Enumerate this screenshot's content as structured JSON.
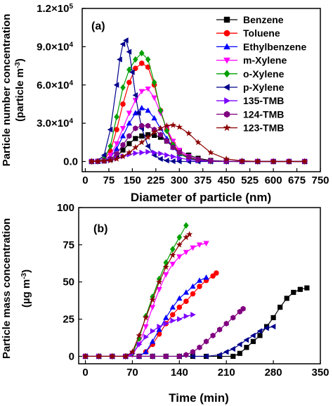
{
  "chart_data": [
    {
      "type": "line",
      "panel_label": "(a)",
      "xlabel": "Diameter of particle (nm)",
      "ylabel_line1": "Particle number concentration",
      "ylabel_line2_text": "(particle m",
      "ylabel_line2_sup": "-3",
      "ylabel_line2_close": ")",
      "xlim": [
        -10,
        750
      ],
      "ylim": [
        -8000,
        120000
      ],
      "xticks": [
        "0",
        "75",
        "150",
        "225",
        "300",
        "375",
        "450",
        "525",
        "600",
        "675",
        "750"
      ],
      "xtick_values": [
        0,
        75,
        150,
        225,
        300,
        375,
        450,
        525,
        600,
        675,
        750
      ],
      "yticks": [
        "0.0",
        "3.0×10",
        "6.0×10",
        "9.0×10",
        "1.2×10"
      ],
      "ytick_sup": [
        "",
        "4",
        "4",
        "4",
        "5"
      ],
      "ytick_values": [
        0,
        30000,
        60000,
        90000,
        120000
      ],
      "legend_position": "top-right",
      "series": [
        {
          "name": "Benzene",
          "color": "#000000",
          "marker": "square",
          "x": [
            20,
            40,
            60,
            80,
            100,
            120,
            140,
            160,
            180,
            200,
            220,
            240,
            260,
            280,
            300,
            330,
            360,
            400,
            450,
            500,
            550,
            600,
            650,
            700
          ],
          "y": [
            0,
            100,
            500,
            1500,
            4000,
            9000,
            14000,
            18000,
            20000,
            21000,
            20500,
            19000,
            16000,
            12000,
            8000,
            5000,
            2500,
            800,
            200,
            50,
            0,
            0,
            0,
            0
          ]
        },
        {
          "name": "Toluene",
          "color": "#ff0000",
          "marker": "circle",
          "x": [
            20,
            40,
            60,
            80,
            100,
            120,
            140,
            160,
            180,
            200,
            220,
            240,
            260,
            280,
            300,
            330,
            360,
            400,
            450,
            500,
            550,
            600,
            650,
            700
          ],
          "y": [
            0,
            200,
            1500,
            8000,
            25000,
            45000,
            62000,
            73000,
            77000,
            74000,
            60000,
            40000,
            25000,
            14000,
            7000,
            3000,
            1000,
            300,
            50,
            0,
            0,
            0,
            0,
            0
          ]
        },
        {
          "name": "Ethylbenzene",
          "color": "#0000ff",
          "marker": "triangle-up",
          "x": [
            20,
            40,
            60,
            80,
            100,
            120,
            140,
            160,
            180,
            200,
            220,
            240,
            260,
            280,
            300,
            330,
            360,
            400,
            450,
            500,
            550,
            600,
            650,
            700
          ],
          "y": [
            0,
            100,
            600,
            3000,
            10000,
            20000,
            30000,
            38000,
            42000,
            40000,
            34000,
            26000,
            18000,
            11000,
            6000,
            2500,
            900,
            200,
            50,
            0,
            0,
            0,
            0,
            0
          ]
        },
        {
          "name": "m-Xylene",
          "color": "#ff00ff",
          "marker": "triangle-down",
          "x": [
            20,
            40,
            60,
            80,
            100,
            120,
            140,
            160,
            180,
            200,
            220,
            240,
            260,
            280,
            300,
            330,
            360,
            400,
            450,
            500,
            550,
            600,
            650,
            700
          ],
          "y": [
            0,
            200,
            1000,
            5000,
            14000,
            26000,
            38000,
            48000,
            55000,
            57000,
            50000,
            38000,
            26000,
            16000,
            9000,
            4000,
            1500,
            400,
            100,
            0,
            0,
            0,
            0,
            0
          ]
        },
        {
          "name": "o-Xylene",
          "color": "#00a000",
          "marker": "diamond",
          "x": [
            20,
            40,
            60,
            80,
            100,
            120,
            140,
            160,
            180,
            200,
            220,
            240,
            260,
            280,
            300,
            330,
            360,
            400,
            450,
            500,
            550,
            600,
            650,
            700
          ],
          "y": [
            0,
            200,
            2000,
            12000,
            35000,
            58000,
            72000,
            80000,
            85000,
            80000,
            62000,
            40000,
            24000,
            13000,
            6000,
            2500,
            800,
            200,
            50,
            0,
            0,
            0,
            0,
            0
          ]
        },
        {
          "name": "p-Xylene",
          "color": "#00008b",
          "marker": "triangle-left",
          "x": [
            20,
            40,
            60,
            80,
            100,
            110,
            120,
            130,
            140,
            150,
            160,
            170,
            180,
            200,
            220,
            240,
            260,
            280,
            300,
            330,
            360,
            400,
            450,
            500,
            550,
            600,
            650,
            700
          ],
          "y": [
            0,
            500,
            5000,
            25000,
            60000,
            80000,
            92000,
            95000,
            86000,
            70000,
            52000,
            38000,
            26000,
            12000,
            5000,
            2000,
            700,
            200,
            50,
            0,
            0,
            0,
            0,
            0,
            0,
            0,
            0,
            0
          ]
        },
        {
          "name": "135-TMB",
          "color": "#7b00ff",
          "marker": "triangle-right",
          "x": [
            20,
            40,
            60,
            80,
            100,
            120,
            140,
            160,
            180,
            200,
            220,
            240,
            260,
            280,
            300,
            330,
            360,
            400,
            450,
            500,
            550,
            600,
            650,
            700
          ],
          "y": [
            0,
            100,
            400,
            1000,
            2500,
            4000,
            5500,
            6500,
            7000,
            7500,
            7000,
            6200,
            5000,
            3800,
            2700,
            1500,
            700,
            250,
            50,
            0,
            0,
            0,
            0,
            0
          ]
        },
        {
          "name": "124-TMB",
          "color": "#800080",
          "marker": "hexagon",
          "x": [
            20,
            40,
            60,
            80,
            100,
            120,
            140,
            160,
            180,
            200,
            220,
            240,
            260,
            280,
            300,
            330,
            360,
            400,
            450,
            500,
            550,
            600,
            650,
            700
          ],
          "y": [
            0,
            100,
            500,
            2000,
            6000,
            13000,
            20000,
            26000,
            28000,
            28000,
            25000,
            21000,
            16000,
            11000,
            7000,
            3500,
            1500,
            400,
            100,
            0,
            0,
            0,
            0,
            0
          ]
        },
        {
          "name": "123-TMB",
          "color": "#8b0000",
          "marker": "star",
          "x": [
            20,
            40,
            60,
            80,
            100,
            120,
            140,
            160,
            180,
            200,
            220,
            240,
            260,
            280,
            300,
            330,
            360,
            400,
            450,
            500,
            550,
            600,
            650,
            700
          ],
          "y": [
            0,
            100,
            300,
            800,
            2000,
            4000,
            7000,
            11000,
            15000,
            19000,
            23000,
            26000,
            28000,
            28500,
            27000,
            22000,
            15000,
            7000,
            2000,
            500,
            100,
            0,
            0,
            0
          ]
        }
      ]
    },
    {
      "type": "line",
      "panel_label": "(b)",
      "xlabel": "Time (min)",
      "ylabel_line1": "Particle mass concentration",
      "ylabel_line2_text": "(µg m",
      "ylabel_line2_sup": "-3",
      "ylabel_line2_close": ")",
      "xlim": [
        -10,
        350
      ],
      "ylim": [
        -5,
        100
      ],
      "xticks": [
        "0",
        "70",
        "140",
        "210",
        "280",
        "350"
      ],
      "xtick_values": [
        0,
        70,
        140,
        210,
        280,
        350
      ],
      "yticks": [
        "0",
        "25",
        "50",
        "75",
        "100"
      ],
      "ytick_values": [
        0,
        25,
        50,
        75,
        100
      ],
      "series": [
        {
          "name": "Benzene",
          "color": "#000000",
          "marker": "square",
          "x": [
            0,
            20,
            40,
            60,
            80,
            100,
            120,
            140,
            160,
            180,
            200,
            220,
            230,
            240,
            250,
            260,
            270,
            280,
            290,
            300,
            310,
            320,
            330
          ],
          "y": [
            0,
            0,
            0,
            0,
            0,
            0,
            0,
            0,
            0,
            0,
            0,
            0,
            2,
            6,
            10,
            14,
            20,
            26,
            33,
            39,
            43,
            45,
            46
          ]
        },
        {
          "name": "Toluene",
          "color": "#ff0000",
          "marker": "circle",
          "x": [
            0,
            20,
            40,
            60,
            80,
            90,
            100,
            110,
            120,
            130,
            140,
            150,
            160,
            170,
            180,
            190,
            195
          ],
          "y": [
            0,
            0,
            0,
            0,
            0,
            3,
            8,
            15,
            22,
            28,
            33,
            37,
            42,
            47,
            51,
            54,
            56
          ]
        },
        {
          "name": "Ethylbenzene",
          "color": "#0000ff",
          "marker": "triangle-up",
          "x": [
            0,
            20,
            40,
            60,
            80,
            90,
            100,
            110,
            120,
            130,
            140,
            150,
            160,
            170,
            180
          ],
          "y": [
            0,
            0,
            0,
            0,
            0,
            3,
            10,
            18,
            26,
            33,
            39,
            43,
            47,
            51,
            53
          ]
        },
        {
          "name": "m-Xylene",
          "color": "#ff00ff",
          "marker": "triangle-down",
          "x": [
            0,
            20,
            40,
            60,
            70,
            80,
            90,
            100,
            110,
            120,
            130,
            140,
            150,
            160,
            170,
            180
          ],
          "y": [
            0,
            0,
            0,
            0,
            1,
            8,
            20,
            33,
            45,
            55,
            62,
            67,
            70,
            73,
            75,
            76
          ]
        },
        {
          "name": "o-Xylene",
          "color": "#00a000",
          "marker": "diamond",
          "x": [
            0,
            20,
            40,
            60,
            70,
            80,
            90,
            100,
            110,
            120,
            130,
            140,
            150
          ],
          "y": [
            0,
            0,
            0,
            0,
            2,
            12,
            27,
            40,
            52,
            63,
            72,
            80,
            88
          ]
        },
        {
          "name": "p-Xylene",
          "color": "#00008b",
          "marker": "triangle-left",
          "x": [
            0,
            20,
            40,
            60,
            80,
            100,
            120,
            140,
            160,
            180,
            200,
            210,
            220,
            230,
            240,
            250,
            260,
            270,
            280
          ],
          "y": [
            0,
            0,
            0,
            0,
            0,
            0,
            0,
            0,
            0,
            0,
            1,
            3,
            5,
            8,
            11,
            14,
            17,
            19,
            20
          ]
        },
        {
          "name": "135-TMB",
          "color": "#7b00ff",
          "marker": "triangle-right",
          "x": [
            0,
            20,
            40,
            60,
            70,
            80,
            90,
            100,
            110,
            120,
            130,
            140,
            150,
            160
          ],
          "y": [
            0,
            0,
            0,
            0,
            2,
            8,
            13,
            17,
            20,
            22,
            24,
            25,
            27,
            28
          ]
        },
        {
          "name": "124-TMB",
          "color": "#800080",
          "marker": "hexagon",
          "x": [
            0,
            20,
            40,
            60,
            80,
            100,
            120,
            140,
            150,
            160,
            170,
            180,
            190,
            200,
            210,
            220,
            230,
            235
          ],
          "y": [
            0,
            0,
            0,
            0,
            0,
            0,
            0,
            0,
            1,
            3,
            6,
            10,
            14,
            18,
            22,
            26,
            30,
            32
          ]
        },
        {
          "name": "123-TMB",
          "color": "#8b0000",
          "marker": "star",
          "x": [
            0,
            20,
            40,
            60,
            70,
            80,
            90,
            100,
            110,
            120,
            130,
            140,
            150,
            155
          ],
          "y": [
            0,
            0,
            0,
            0,
            3,
            14,
            26,
            38,
            50,
            60,
            68,
            75,
            80,
            82
          ]
        }
      ]
    }
  ]
}
